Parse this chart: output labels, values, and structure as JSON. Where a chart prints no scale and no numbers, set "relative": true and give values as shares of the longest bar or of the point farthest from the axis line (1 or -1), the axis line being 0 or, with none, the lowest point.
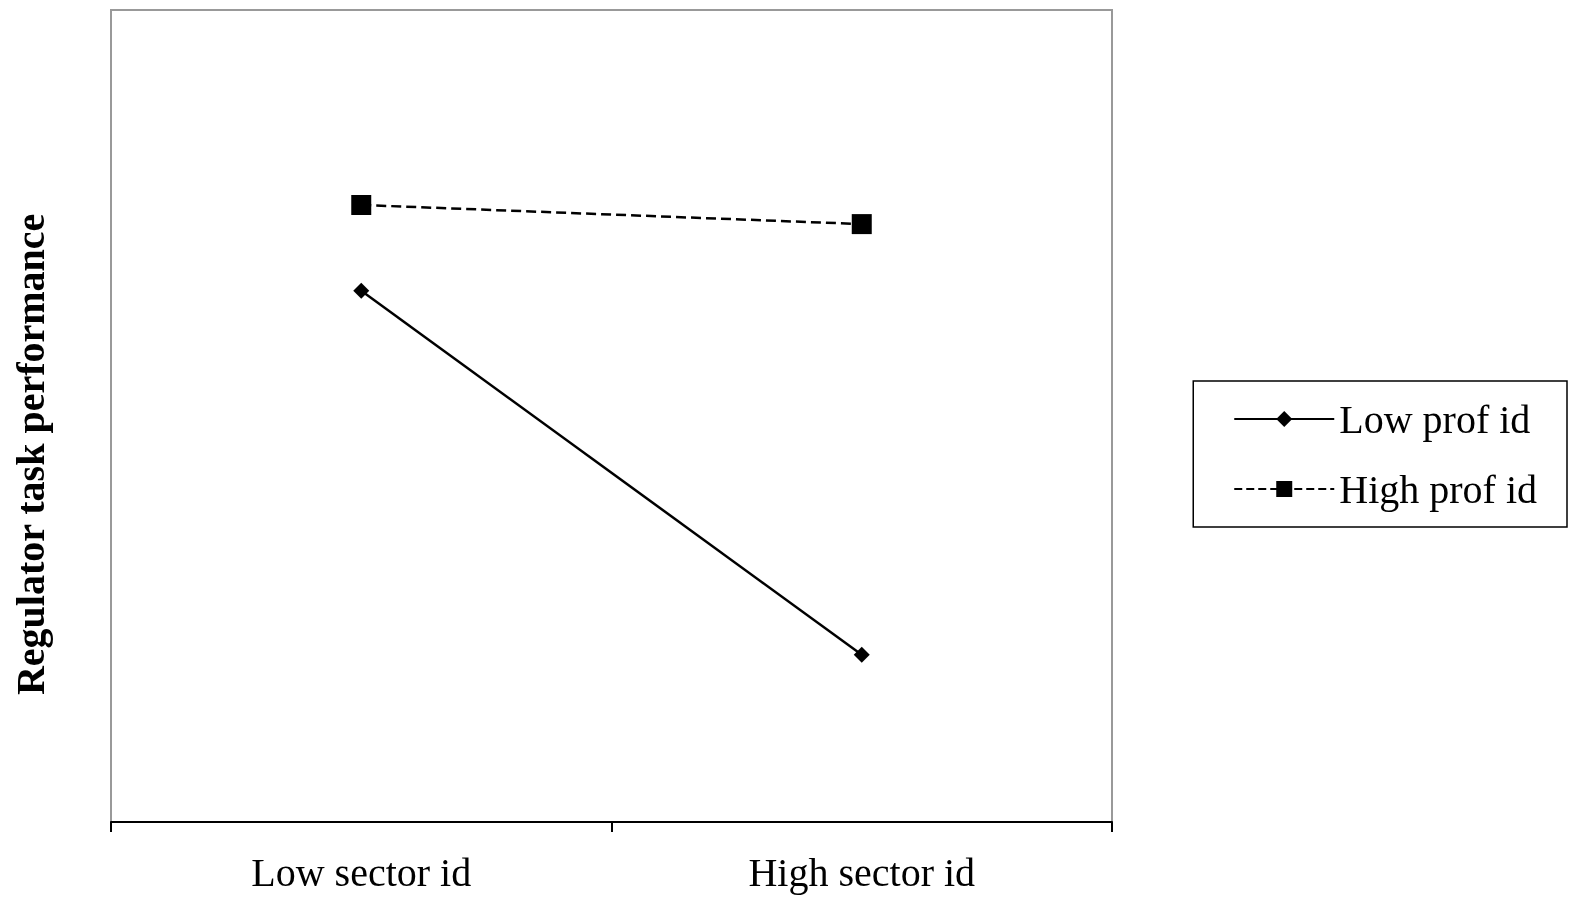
{
  "chart_data": {
    "type": "line",
    "ylabel": "Regulator task performance",
    "categories": [
      "Low sector id",
      "High sector id"
    ],
    "relative": true,
    "legend": "right",
    "grid": false,
    "series": [
      {
        "name": "Low prof id",
        "color": "#000000",
        "values": [
          0.861,
          0.271
        ],
        "marker": "diamond",
        "line_style": "solid"
      },
      {
        "name": "High prof id",
        "color": "#000000",
        "values": [
          1,
          0.969
        ],
        "marker": "square",
        "line_style": "dashed"
      }
    ]
  }
}
